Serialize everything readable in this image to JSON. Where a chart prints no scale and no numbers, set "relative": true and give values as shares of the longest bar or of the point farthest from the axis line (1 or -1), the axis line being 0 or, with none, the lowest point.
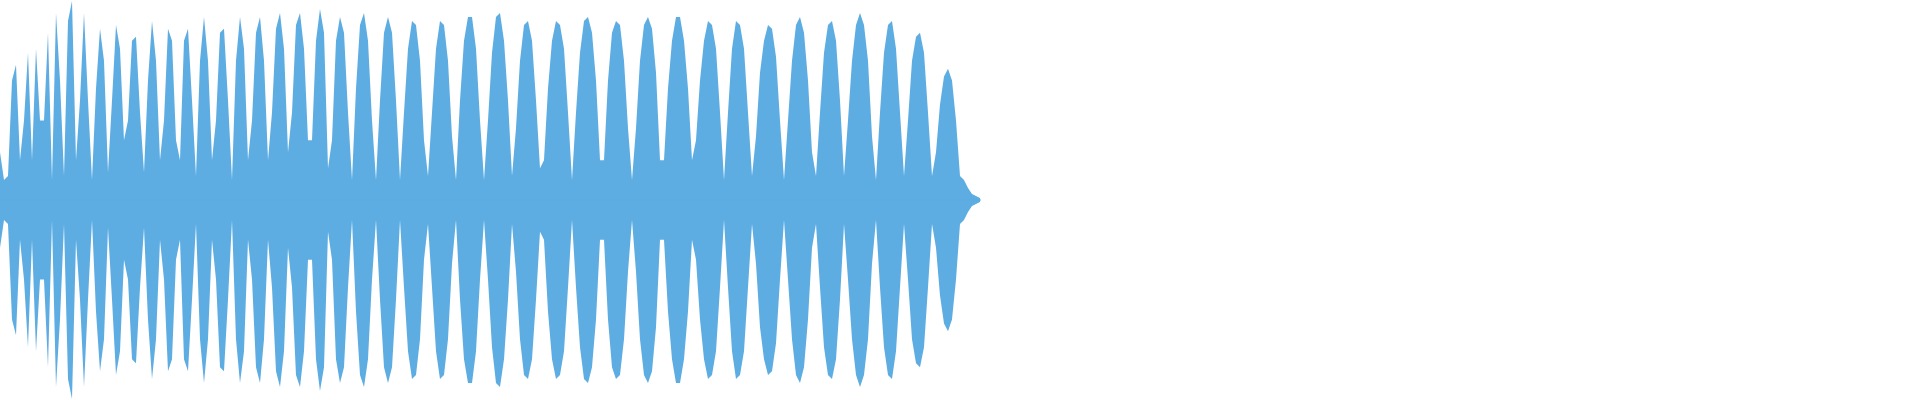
{
  "chart_data": {
    "type": "area",
    "relative": true,
    "categories": [
      null,
      null,
      null,
      null,
      null,
      null,
      null,
      null,
      null,
      null,
      null,
      null,
      null,
      null,
      null,
      null,
      null,
      null,
      null,
      null,
      null,
      null,
      null,
      null,
      null,
      null,
      null,
      null,
      null,
      null,
      null,
      null,
      null,
      null,
      null,
      null,
      null,
      null,
      null,
      null,
      null,
      null,
      null,
      null,
      null,
      null,
      null,
      null,
      null,
      null,
      null,
      null,
      null,
      null,
      null,
      null,
      null,
      null,
      null,
      null,
      null,
      null,
      null,
      null,
      null,
      null,
      null,
      null,
      null,
      null,
      null,
      null,
      null,
      null,
      null,
      null,
      null,
      null,
      null,
      null,
      null,
      null,
      null,
      null,
      null,
      null,
      null,
      null,
      null,
      null,
      null,
      null,
      null,
      null,
      null,
      null,
      null,
      null,
      null,
      null,
      null,
      null,
      null,
      null,
      null,
      null,
      null,
      null,
      null,
      null,
      null,
      null,
      null,
      null,
      null,
      null,
      null,
      null,
      null,
      null,
      null,
      null,
      null,
      null,
      null,
      null,
      null,
      null,
      null,
      null,
      null,
      null,
      null,
      null,
      null,
      null,
      null,
      null,
      null,
      null,
      null,
      null,
      null,
      null,
      null,
      null,
      null,
      null,
      null,
      null,
      null,
      null,
      null,
      null,
      null,
      null,
      null,
      null,
      null,
      null,
      null,
      null,
      null,
      null,
      null,
      null,
      null,
      null,
      null,
      null,
      null,
      null,
      null,
      null,
      null,
      null,
      null,
      null,
      null,
      null,
      null,
      null,
      null,
      null,
      null,
      null,
      null,
      null,
      null,
      null,
      null,
      null,
      null,
      null,
      null,
      null,
      null,
      null,
      null,
      null,
      null,
      null,
      null,
      null,
      null,
      null,
      null,
      null,
      null,
      null,
      null,
      null,
      null,
      null,
      null,
      null,
      null,
      null,
      null,
      null,
      null,
      null,
      null,
      null,
      null,
      null,
      null,
      null,
      null,
      null,
      null,
      null,
      null,
      null,
      null,
      null,
      null,
      null,
      null,
      null,
      null,
      null,
      null,
      null,
      null,
      null
    ],
    "series": [
      {
        "color": "#5dade2",
        "values": [
          0.24,
          0.1,
          0.12,
          0.6,
          0.68,
          0.2,
          0.4,
          0.74,
          0.2,
          0.76,
          0.4,
          0.4,
          0.84,
          0.1,
          0.94,
          0.6,
          0.12,
          0.9,
          1.0,
          0.2,
          0.5,
          0.94,
          0.5,
          0.1,
          0.56,
          0.86,
          0.7,
          0.14,
          0.5,
          0.88,
          0.76,
          0.3,
          0.4,
          0.8,
          0.82,
          0.44,
          0.14,
          0.6,
          0.9,
          0.7,
          0.2,
          0.4,
          0.86,
          0.8,
          0.3,
          0.2,
          0.8,
          0.86,
          0.5,
          0.12,
          0.7,
          0.92,
          0.7,
          0.2,
          0.4,
          0.84,
          0.86,
          0.5,
          0.1,
          0.7,
          0.92,
          0.76,
          0.2,
          0.4,
          0.84,
          0.92,
          0.7,
          0.2,
          0.44,
          0.86,
          0.94,
          0.76,
          0.24,
          0.44,
          0.88,
          0.94,
          0.76,
          0.3,
          0.3,
          0.8,
          0.96,
          0.84,
          0.16,
          0.3,
          0.8,
          0.92,
          0.84,
          0.44,
          0.1,
          0.56,
          0.88,
          0.94,
          0.8,
          0.4,
          0.1,
          0.5,
          0.84,
          0.92,
          0.84,
          0.5,
          0.1,
          0.44,
          0.76,
          0.9,
          0.88,
          0.7,
          0.3,
          0.12,
          0.44,
          0.76,
          0.9,
          0.88,
          0.7,
          0.32,
          0.1,
          0.5,
          0.8,
          0.92,
          0.92,
          0.76,
          0.4,
          0.1,
          0.4,
          0.74,
          0.92,
          0.94,
          0.8,
          0.5,
          0.12,
          0.36,
          0.7,
          0.88,
          0.9,
          0.8,
          0.5,
          0.16,
          0.2,
          0.56,
          0.8,
          0.9,
          0.88,
          0.76,
          0.44,
          0.1,
          0.44,
          0.74,
          0.9,
          0.92,
          0.84,
          0.6,
          0.2,
          0.2,
          0.6,
          0.84,
          0.9,
          0.88,
          0.7,
          0.36,
          0.1,
          0.36,
          0.7,
          0.88,
          0.92,
          0.86,
          0.64,
          0.2,
          0.2,
          0.56,
          0.8,
          0.92,
          0.92,
          0.8,
          0.56,
          0.2,
          0.3,
          0.6,
          0.8,
          0.9,
          0.88,
          0.76,
          0.44,
          0.1,
          0.44,
          0.76,
          0.9,
          0.88,
          0.76,
          0.44,
          0.12,
          0.32,
          0.64,
          0.8,
          0.88,
          0.86,
          0.72,
          0.4,
          0.1,
          0.4,
          0.7,
          0.88,
          0.92,
          0.84,
          0.6,
          0.24,
          0.12,
          0.44,
          0.74,
          0.88,
          0.9,
          0.8,
          0.5,
          0.12,
          0.4,
          0.7,
          0.88,
          0.94,
          0.88,
          0.7,
          0.32,
          0.1,
          0.44,
          0.74,
          0.88,
          0.9,
          0.76,
          0.44,
          0.12,
          0.4,
          0.7,
          0.82,
          0.84,
          0.74,
          0.44,
          0.12,
          0.24,
          0.48,
          0.62,
          0.66,
          0.6,
          0.4,
          0.12,
          0.1,
          0.06,
          0.03,
          0.02,
          0.01
        ]
      },
      {
        "color": "#5dade2",
        "values": [
          -0.24,
          -0.1,
          -0.12,
          -0.6,
          -0.68,
          -0.2,
          -0.4,
          -0.74,
          -0.2,
          -0.76,
          -0.4,
          -0.4,
          -0.84,
          -0.1,
          -0.94,
          -0.6,
          -0.12,
          -0.9,
          -1.0,
          -0.2,
          -0.5,
          -0.94,
          -0.5,
          -0.1,
          -0.56,
          -0.86,
          -0.7,
          -0.14,
          -0.5,
          -0.88,
          -0.76,
          -0.3,
          -0.4,
          -0.8,
          -0.82,
          -0.44,
          -0.14,
          -0.6,
          -0.9,
          -0.7,
          -0.2,
          -0.4,
          -0.86,
          -0.8,
          -0.3,
          -0.2,
          -0.8,
          -0.86,
          -0.5,
          -0.12,
          -0.7,
          -0.92,
          -0.7,
          -0.2,
          -0.4,
          -0.84,
          -0.86,
          -0.5,
          -0.1,
          -0.7,
          -0.92,
          -0.76,
          -0.2,
          -0.4,
          -0.84,
          -0.92,
          -0.7,
          -0.2,
          -0.44,
          -0.86,
          -0.94,
          -0.76,
          -0.24,
          -0.44,
          -0.88,
          -0.94,
          -0.76,
          -0.3,
          -0.3,
          -0.8,
          -0.96,
          -0.84,
          -0.16,
          -0.3,
          -0.8,
          -0.92,
          -0.84,
          -0.44,
          -0.1,
          -0.56,
          -0.88,
          -0.94,
          -0.8,
          -0.4,
          -0.1,
          -0.5,
          -0.84,
          -0.92,
          -0.84,
          -0.5,
          -0.1,
          -0.44,
          -0.76,
          -0.9,
          -0.88,
          -0.7,
          -0.3,
          -0.12,
          -0.44,
          -0.76,
          -0.9,
          -0.88,
          -0.7,
          -0.32,
          -0.1,
          -0.5,
          -0.8,
          -0.92,
          -0.92,
          -0.76,
          -0.4,
          -0.1,
          -0.4,
          -0.74,
          -0.92,
          -0.94,
          -0.8,
          -0.5,
          -0.12,
          -0.36,
          -0.7,
          -0.88,
          -0.9,
          -0.8,
          -0.5,
          -0.16,
          -0.2,
          -0.56,
          -0.8,
          -0.9,
          -0.88,
          -0.76,
          -0.44,
          -0.1,
          -0.44,
          -0.74,
          -0.9,
          -0.92,
          -0.84,
          -0.6,
          -0.2,
          -0.2,
          -0.6,
          -0.84,
          -0.9,
          -0.88,
          -0.7,
          -0.36,
          -0.1,
          -0.36,
          -0.7,
          -0.88,
          -0.92,
          -0.86,
          -0.64,
          -0.2,
          -0.2,
          -0.56,
          -0.8,
          -0.92,
          -0.92,
          -0.8,
          -0.56,
          -0.2,
          -0.3,
          -0.6,
          -0.8,
          -0.9,
          -0.88,
          -0.76,
          -0.44,
          -0.1,
          -0.44,
          -0.76,
          -0.9,
          -0.88,
          -0.76,
          -0.44,
          -0.12,
          -0.32,
          -0.64,
          -0.8,
          -0.88,
          -0.86,
          -0.72,
          -0.4,
          -0.1,
          -0.4,
          -0.7,
          -0.88,
          -0.92,
          -0.84,
          -0.6,
          -0.24,
          -0.12,
          -0.44,
          -0.74,
          -0.88,
          -0.9,
          -0.8,
          -0.5,
          -0.12,
          -0.4,
          -0.7,
          -0.88,
          -0.94,
          -0.88,
          -0.7,
          -0.32,
          -0.1,
          -0.44,
          -0.74,
          -0.88,
          -0.9,
          -0.76,
          -0.44,
          -0.12,
          -0.4,
          -0.7,
          -0.82,
          -0.84,
          -0.74,
          -0.44,
          -0.12,
          -0.24,
          -0.48,
          -0.62,
          -0.66,
          -0.6,
          -0.4,
          -0.12,
          -0.1,
          -0.06,
          -0.03,
          -0.02,
          -0.01
        ]
      }
    ]
  }
}
